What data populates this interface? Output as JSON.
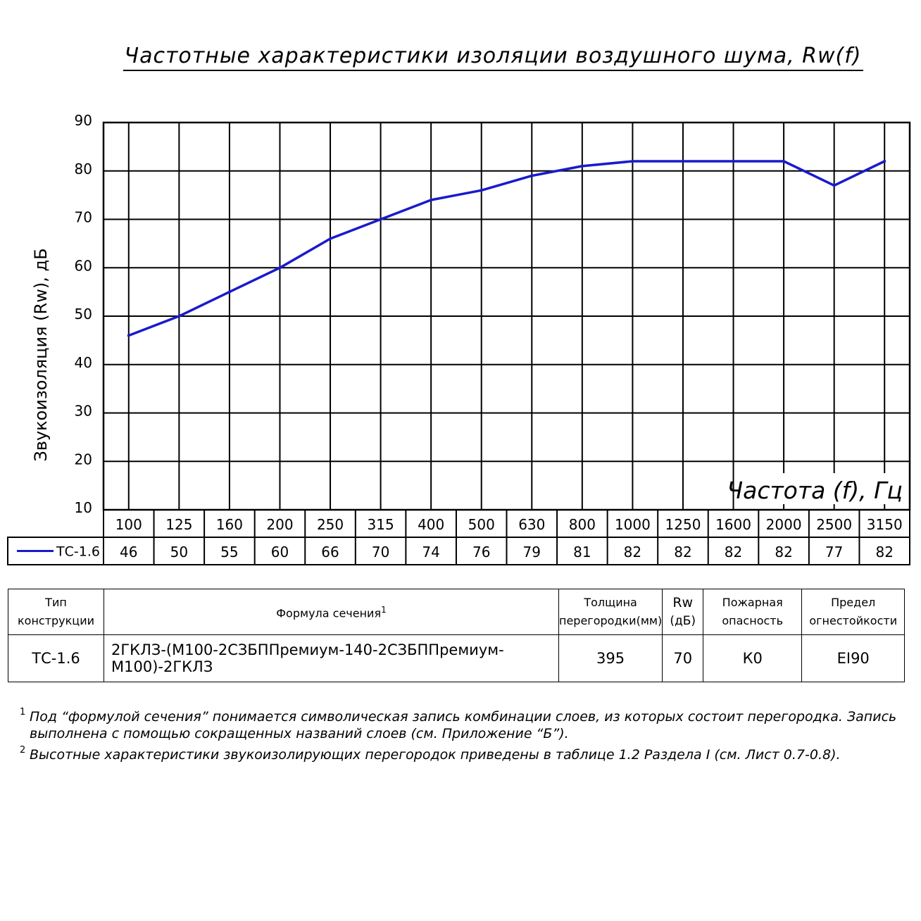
{
  "title": "Частотные характеристики изоляции воздушного шума, Rw(f)",
  "colors": {
    "series": "#1a1acc",
    "grid": "#000000"
  },
  "chart_data": {
    "type": "line",
    "ylabel": "Звукоизоляция (Rw), дБ",
    "xlabel": "Частота (f), Гц",
    "ylim": [
      10,
      90
    ],
    "y_ticks": [
      "10",
      "20",
      "30",
      "40",
      "50",
      "60",
      "70",
      "80",
      "90"
    ],
    "categories": [
      "100",
      "125",
      "160",
      "200",
      "250",
      "315",
      "400",
      "500",
      "630",
      "800",
      "1000",
      "1250",
      "1600",
      "2000",
      "2500",
      "3150"
    ],
    "series": [
      {
        "name": "ТС-1.6",
        "values": [
          46,
          50,
          55,
          60,
          66,
          70,
          74,
          76,
          79,
          81,
          82,
          82,
          82,
          82,
          77,
          82
        ]
      }
    ],
    "grid": true,
    "legend": "bottom-left, in data table row"
  },
  "properties_table": {
    "headers": {
      "type": "Тип конструкции",
      "formula": "Формула сечения",
      "formula_note": "1",
      "thickness": "Толщина перегородки(мм)",
      "rw_top": "Rw",
      "rw_unit": "(дБ)",
      "fire_hazard": "Пожарная опасность",
      "fire_limit": "Предел огнестойкости"
    },
    "row": {
      "type": "ТС-1.6",
      "formula": "2ГКЛЗ-(М100-2СЗБППремиум-140-2СЗБППремиум-М100)-2ГКЛЗ",
      "thickness": "395",
      "rw": "70",
      "fire_hazard": "К0",
      "fire_limit": "EI90"
    }
  },
  "footnotes": [
    {
      "mark": "1",
      "text": "Под “формулой сечения” понимается символическая запись комбинации слоев, из которых состоит перегородка. Запись выполнена с помощью сокращенных названий слоев (см. Приложение “Б”)."
    },
    {
      "mark": "2",
      "text": "Высотные характеристики звукоизолирующих перегородок приведены в таблице 1.2 Раздела I (см. Лист 0.7-0.8)."
    }
  ]
}
